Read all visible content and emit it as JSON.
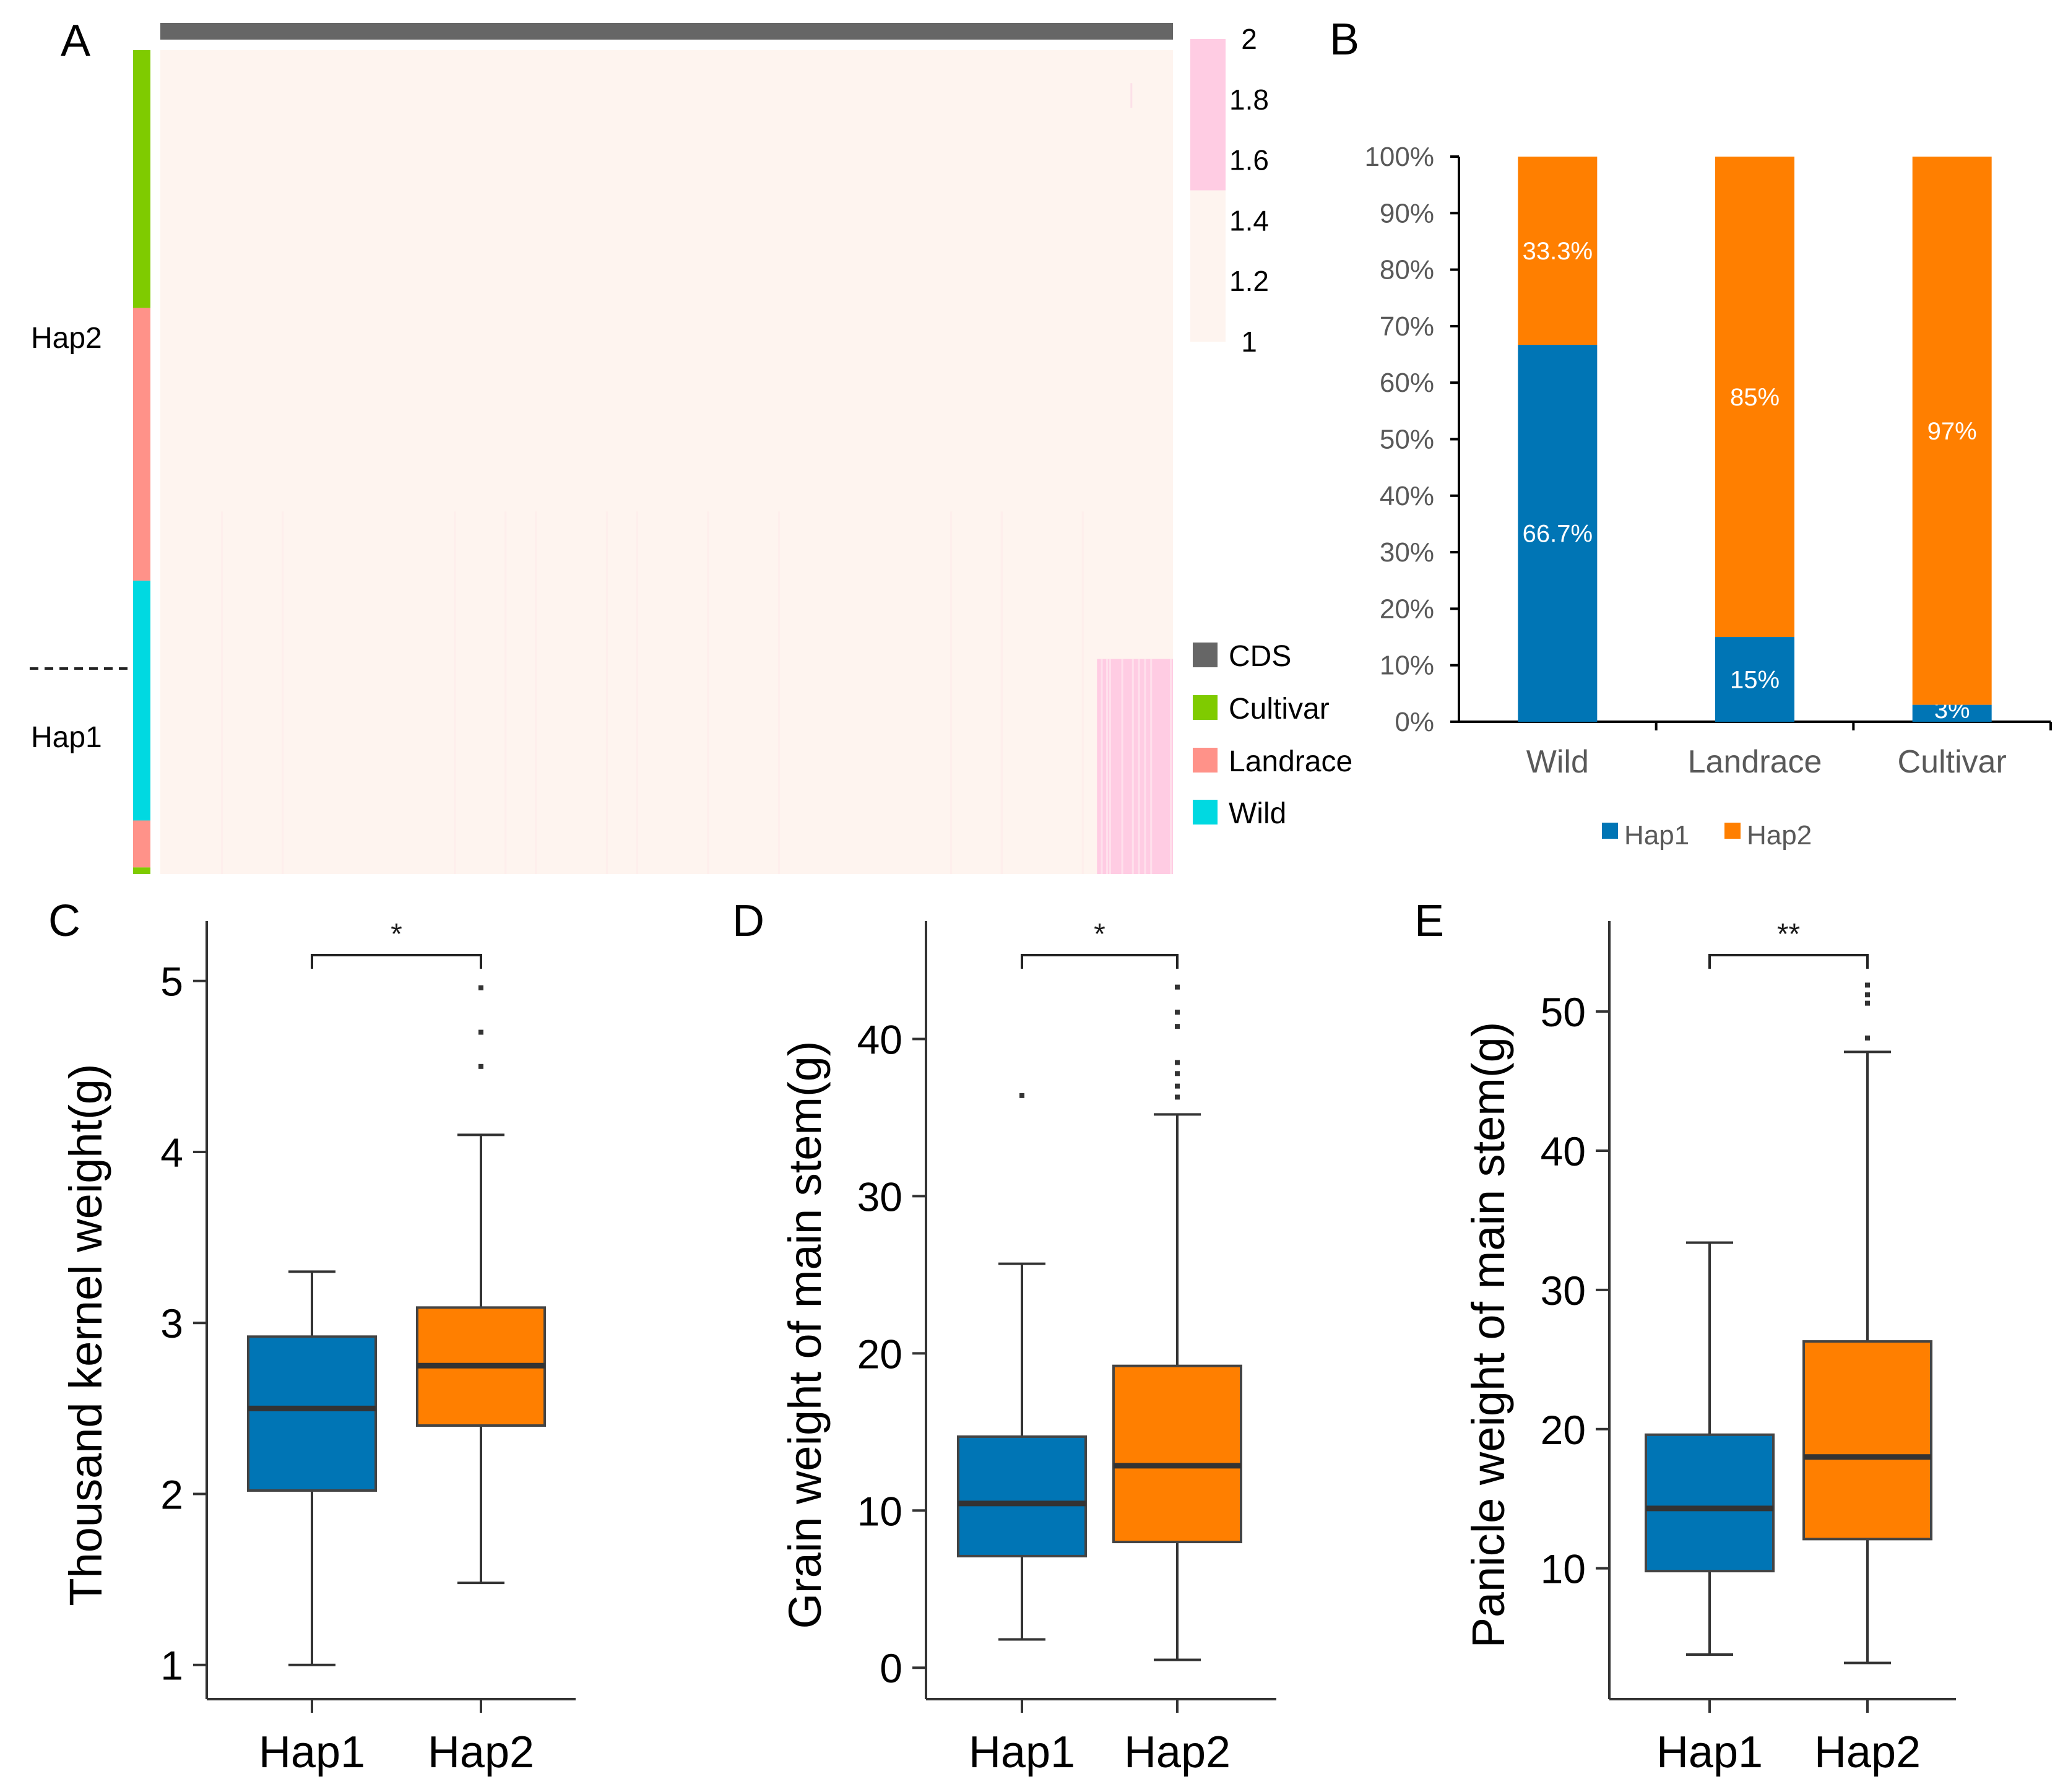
{
  "figure": {
    "panel_letters": [
      "A",
      "B",
      "C",
      "D",
      "E"
    ]
  },
  "chart_data": [
    {
      "id": "A",
      "type": "heatmap",
      "title": "",
      "top_annotation": {
        "label": "CDS",
        "color": "#666666"
      },
      "row_groups": [
        {
          "label": "Hap2",
          "segments": [
            {
              "population": "Cultivar",
              "fraction": 0.313
            },
            {
              "population": "Landrace",
              "fraction": 0.331
            }
          ]
        },
        {
          "label": "Hap1",
          "segments": [
            {
              "population": "Wild",
              "fraction": 0.291
            },
            {
              "population": "Landrace",
              "fraction": 0.057
            },
            {
              "population": "Cultivar",
              "fraction": 0.008
            }
          ]
        }
      ],
      "divider": "dashed line between Hap2 and Hap1",
      "color_scale": {
        "min": 1,
        "max": 2,
        "ticks": [
          "2",
          "1.8",
          "1.6",
          "1.4",
          "1.2",
          "1"
        ],
        "low_color": "#FEF4EF",
        "high_color": "#FFCCE3",
        "threshold": 1.5
      },
      "high_value_region": {
        "columns_fraction": [
          0.925,
          1.0
        ],
        "rows": "Hap1 lower portion"
      },
      "legend": [
        {
          "label": "CDS",
          "color": "#666666"
        },
        {
          "label": "Cultivar",
          "color": "#7FCB00"
        },
        {
          "label": "Landrace",
          "color": "#FF9289"
        },
        {
          "label": "Wild",
          "color": "#00D9E1"
        }
      ]
    },
    {
      "id": "B",
      "type": "bar",
      "stacked": true,
      "title": "",
      "categories": [
        "Wild",
        "Landrace",
        "Cultivar"
      ],
      "series": [
        {
          "name": "Hap1",
          "color": "#0075B5",
          "values": [
            66.7,
            15,
            3
          ],
          "labels": [
            "66.7%",
            "15%",
            "3%"
          ]
        },
        {
          "name": "Hap2",
          "color": "#FF7F00",
          "values": [
            33.3,
            85,
            97
          ],
          "labels": [
            "33.3%",
            "85%",
            "97%"
          ]
        }
      ],
      "ylim": [
        0,
        100
      ],
      "yticks": [
        "0%",
        "10%",
        "20%",
        "30%",
        "40%",
        "50%",
        "60%",
        "70%",
        "80%",
        "90%",
        "100%"
      ],
      "xlabel": "",
      "ylabel": "",
      "legend": "bottom"
    },
    {
      "id": "C",
      "type": "box",
      "ylabel": "Thousand kernel weight(g)",
      "categories": [
        "Hap1",
        "Hap2"
      ],
      "ylim": [
        0.8,
        5.35
      ],
      "yticks": [
        1,
        2,
        3,
        4,
        5
      ],
      "significance": "*",
      "boxes": [
        {
          "name": "Hap1",
          "color": "#0075B5",
          "whisker_low": 1.0,
          "q1": 2.02,
          "median": 2.5,
          "q3": 2.92,
          "whisker_high": 3.3,
          "outliers": []
        },
        {
          "name": "Hap2",
          "color": "#FF7F00",
          "whisker_low": 1.48,
          "q1": 2.4,
          "median": 2.75,
          "q3": 3.09,
          "whisker_high": 4.1,
          "outliers": [
            4.5,
            4.7,
            4.96
          ]
        }
      ]
    },
    {
      "id": "D",
      "type": "box",
      "ylabel": "Grain weight of main stem(g)",
      "categories": [
        "Hap1",
        "Hap2"
      ],
      "ylim": [
        -2,
        47.5
      ],
      "yticks": [
        0,
        10,
        20,
        30,
        40
      ],
      "significance": "*",
      "boxes": [
        {
          "name": "Hap1",
          "color": "#0075B5",
          "whisker_low": 1.8,
          "q1": 7.1,
          "median": 10.45,
          "q3": 14.7,
          "whisker_high": 25.7,
          "outliers": [
            36.4
          ]
        },
        {
          "name": "Hap2",
          "color": "#FF7F00",
          "whisker_low": 0.5,
          "q1": 8.0,
          "median": 12.85,
          "q3": 19.2,
          "whisker_high": 35.2,
          "outliers": [
            36.3,
            37.0,
            37.8,
            38.5,
            40.8,
            41.7,
            43.3
          ]
        }
      ]
    },
    {
      "id": "E",
      "type": "box",
      "ylabel": "Panicle weight of main stem(g)",
      "categories": [
        "Hap1",
        "Hap2"
      ],
      "ylim": [
        0.6,
        56.5
      ],
      "yticks": [
        10,
        20,
        30,
        40,
        50
      ],
      "significance": "**",
      "boxes": [
        {
          "name": "Hap1",
          "color": "#0075B5",
          "whisker_low": 3.8,
          "q1": 9.8,
          "median": 14.3,
          "q3": 19.6,
          "whisker_high": 33.4,
          "outliers": []
        },
        {
          "name": "Hap2",
          "color": "#FF7F00",
          "whisker_low": 3.2,
          "q1": 12.1,
          "median": 18.0,
          "q3": 26.3,
          "whisker_high": 47.1,
          "outliers": [
            48.1,
            50.6,
            51.2,
            51.9
          ]
        }
      ]
    }
  ]
}
